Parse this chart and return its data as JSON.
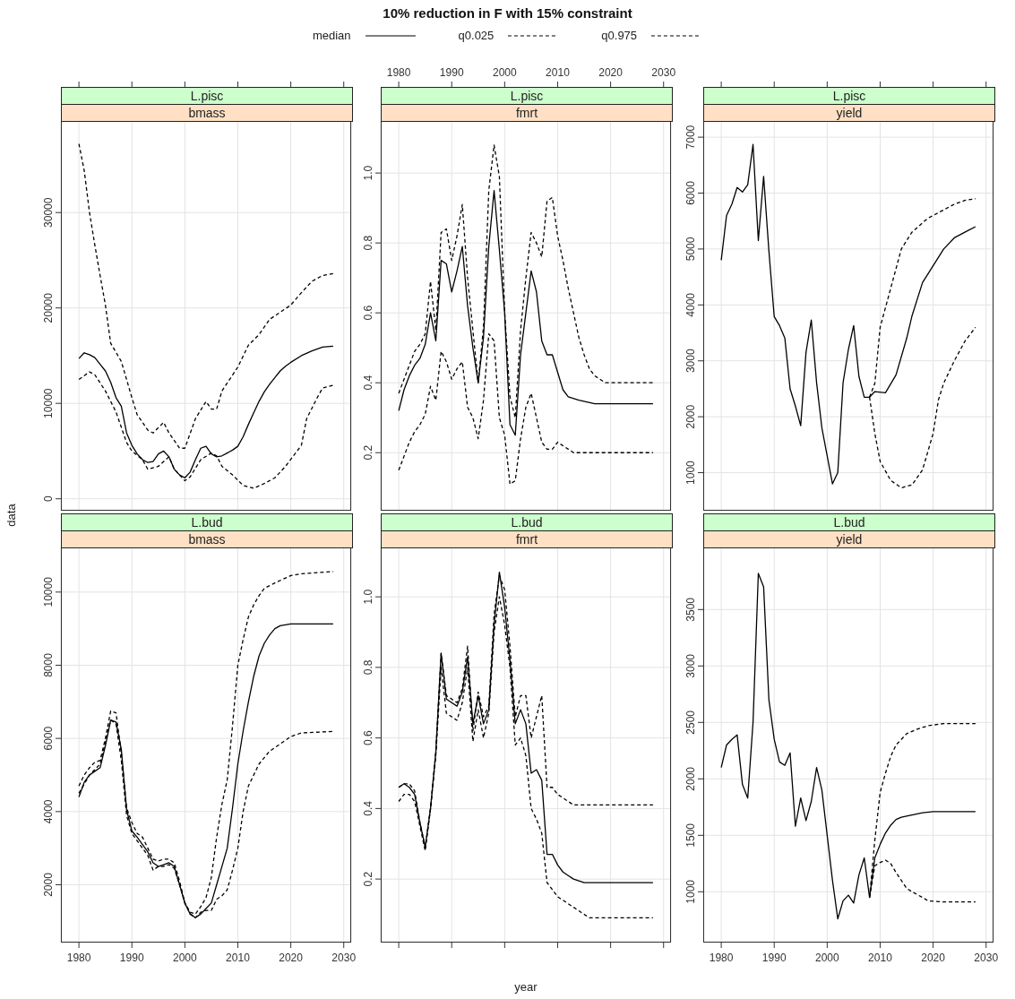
{
  "chart_data": [
    {
      "type": "other",
      "title": "10% reduction in F with 15% constraint"
    },
    {
      "type": "line",
      "title": "L.pisc",
      "subtitle": "bmass",
      "xlim": [
        1976.6,
        2031.4
      ],
      "xticks": [
        1980,
        1990,
        2000,
        2010,
        2020,
        2030
      ],
      "ylim": [
        -1250,
        39600
      ],
      "yticks": [
        0,
        10000,
        20000,
        30000
      ],
      "grid": true,
      "tick_labels": "y",
      "marker": "none",
      "legend": "top",
      "series": [
        {
          "name": "median",
          "color": "#000000",
          "line_style": "solid",
          "x": [
            1980,
            1981,
            1982,
            1983,
            1984,
            1985,
            1986,
            1987,
            1988,
            1989,
            1990,
            1991,
            1992,
            1993,
            1994,
            1995,
            1996,
            1997,
            1998,
            1999,
            2000,
            2001,
            2002,
            2003,
            2004,
            2005,
            2006,
            2007,
            2008,
            2009,
            2010,
            2011,
            2012,
            2013,
            2014,
            2015,
            2016,
            2017,
            2018,
            2019,
            2020,
            2022,
            2024,
            2026,
            2028
          ],
          "values": [
            14700,
            15300,
            15100,
            14800,
            14100,
            13400,
            12200,
            10600,
            9700,
            6900,
            5600,
            4700,
            4100,
            3800,
            3900,
            4700,
            5000,
            4400,
            3100,
            2500,
            2200,
            2800,
            4100,
            5300,
            5500,
            4700,
            4400,
            4500,
            4800,
            5100,
            5500,
            6500,
            7800,
            9000,
            10200,
            11200,
            12000,
            12700,
            13400,
            13900,
            14300,
            15000,
            15500,
            15900,
            16000
          ]
        },
        {
          "name": "q0.025",
          "color": "#000000",
          "line_style": "dashed",
          "x": [
            1980,
            1982,
            1983,
            1985,
            1987,
            1989,
            1990,
            1992,
            1993,
            1995,
            1997,
            1998,
            2000,
            2001,
            2003,
            2005,
            2006,
            2007,
            2009,
            2011,
            2013,
            2015,
            2017,
            2019,
            2022,
            2023,
            2025,
            2026,
            2028
          ],
          "values": [
            12500,
            13300,
            13000,
            11300,
            9100,
            5900,
            5000,
            4100,
            3100,
            3400,
            4400,
            3100,
            1900,
            2300,
            4100,
            4800,
            4500,
            3400,
            2500,
            1400,
            1100,
            1600,
            2200,
            3400,
            5600,
            8400,
            10600,
            11600,
            11900
          ]
        },
        {
          "name": "q0.975",
          "color": "#000000",
          "line_style": "dashed",
          "x": [
            1980,
            1981,
            1982,
            1983,
            1984,
            1985,
            1986,
            1988,
            1990,
            1991,
            1993,
            1994,
            1996,
            1997,
            1999,
            2000,
            2002,
            2004,
            2005,
            2006,
            2007,
            2010,
            2012,
            2014,
            2016,
            2020,
            2022,
            2024,
            2026,
            2028
          ],
          "values": [
            37200,
            34400,
            30000,
            26600,
            23400,
            20300,
            16300,
            14400,
            10600,
            8800,
            7200,
            6900,
            8000,
            6900,
            5300,
            5300,
            8400,
            10200,
            9400,
            9400,
            11300,
            13800,
            16100,
            17200,
            18800,
            20300,
            21600,
            22800,
            23400,
            23600
          ]
        }
      ]
    },
    {
      "type": "line",
      "title": "L.pisc",
      "subtitle": "fmrt",
      "xlim": [
        1976.6,
        2031.4
      ],
      "xticks": [
        1980,
        1990,
        2000,
        2010,
        2020,
        2030
      ],
      "ylim": [
        0.034,
        1.149
      ],
      "yticks": [
        0.2,
        0.4,
        0.6,
        0.8,
        {
          "value": 1,
          "label": "1.0"
        }
      ],
      "grid": true,
      "marker": "none",
      "series": [
        {
          "color": "#000000",
          "line_style": "solid",
          "x": [
            1980,
            1981,
            1982,
            1983,
            1984,
            1985,
            1986,
            1987,
            1988,
            1989,
            1990,
            1991,
            1992,
            1993,
            1994,
            1995,
            1996,
            1997,
            1998,
            1999,
            2000,
            2001,
            2002,
            2003,
            2004,
            2005,
            2006,
            2007,
            2008,
            2009,
            2010,
            2011,
            2012,
            2014,
            2017,
            2028
          ],
          "values": [
            0.32,
            0.38,
            0.42,
            0.45,
            0.47,
            0.51,
            0.6,
            0.52,
            0.75,
            0.74,
            0.66,
            0.72,
            0.79,
            0.62,
            0.5,
            0.4,
            0.53,
            0.79,
            0.95,
            0.78,
            0.6,
            0.28,
            0.25,
            0.48,
            0.6,
            0.72,
            0.66,
            0.52,
            0.48,
            0.48,
            0.43,
            0.38,
            0.36,
            0.35,
            0.34,
            0.34
          ]
        },
        {
          "color": "#000000",
          "line_style": "dashed",
          "x": [
            1980,
            1981,
            1982,
            1983,
            1984,
            1985,
            1986,
            1987,
            1988,
            1989,
            1990,
            1991,
            1992,
            1993,
            1994,
            1995,
            1996,
            1997,
            1998,
            1999,
            2000,
            2001,
            2002,
            2003,
            2004,
            2005,
            2006,
            2007,
            2008,
            2009,
            2010,
            2011,
            2013,
            2016,
            2028
          ],
          "values": [
            0.15,
            0.19,
            0.23,
            0.26,
            0.28,
            0.31,
            0.39,
            0.35,
            0.49,
            0.46,
            0.41,
            0.44,
            0.46,
            0.33,
            0.3,
            0.24,
            0.35,
            0.54,
            0.52,
            0.3,
            0.25,
            0.11,
            0.12,
            0.24,
            0.33,
            0.37,
            0.3,
            0.23,
            0.21,
            0.21,
            0.23,
            0.22,
            0.2,
            0.2,
            0.2
          ]
        },
        {
          "color": "#000000",
          "line_style": "dashed",
          "x": [
            1980,
            1981,
            1982,
            1983,
            1984,
            1985,
            1986,
            1987,
            1988,
            1989,
            1990,
            1991,
            1992,
            1993,
            1994,
            1995,
            1996,
            1997,
            1998,
            1999,
            2000,
            2001,
            2002,
            2003,
            2004,
            2005,
            2006,
            2007,
            2008,
            2009,
            2010,
            2011,
            2012,
            2013,
            2014,
            2015,
            2016,
            2017,
            2019,
            2020,
            2028
          ],
          "values": [
            0.37,
            0.41,
            0.45,
            0.49,
            0.51,
            0.54,
            0.69,
            0.55,
            0.83,
            0.84,
            0.75,
            0.82,
            0.91,
            0.7,
            0.55,
            0.4,
            0.56,
            0.95,
            1.08,
            0.99,
            0.6,
            0.36,
            0.3,
            0.55,
            0.7,
            0.83,
            0.8,
            0.76,
            0.92,
            0.93,
            0.82,
            0.75,
            0.67,
            0.6,
            0.53,
            0.48,
            0.44,
            0.42,
            0.4,
            0.4,
            0.4
          ]
        }
      ]
    },
    {
      "type": "line",
      "title": "L.pisc",
      "subtitle": "yield",
      "xlim": [
        1976.6,
        2031.4
      ],
      "xticks": [
        1980,
        1990,
        2000,
        2010,
        2020,
        2030
      ],
      "ylim": [
        320,
        7290
      ],
      "yticks": [
        1000,
        2000,
        3000,
        4000,
        5000,
        6000,
        7000
      ],
      "grid": true,
      "tick_labels": "y",
      "marker": "none",
      "series": [
        {
          "color": "#000000",
          "line_style": "solid",
          "x": [
            1980,
            1981,
            1982,
            1983,
            1984,
            1985,
            1986,
            1987,
            1988,
            1989,
            1990,
            1991,
            1992,
            1993,
            1994,
            1995,
            1996,
            1997,
            1998,
            1999,
            2000,
            2001,
            2002,
            2003,
            2004,
            2005,
            2006,
            2007,
            2008,
            2009,
            2011,
            2013,
            2015,
            2016,
            2018,
            2020,
            2022,
            2024,
            2026,
            2028
          ],
          "values": [
            4800,
            5600,
            5800,
            6100,
            6020,
            6150,
            6870,
            5150,
            6300,
            4960,
            3790,
            3630,
            3410,
            2500,
            2190,
            1840,
            3150,
            3730,
            2610,
            1800,
            1300,
            800,
            1000,
            2610,
            3200,
            3630,
            2720,
            2350,
            2350,
            2450,
            2430,
            2750,
            3400,
            3800,
            4400,
            4700,
            5000,
            5200,
            5300,
            5400
          ]
        },
        {
          "color": "#000000",
          "line_style": "dashed",
          "x": [
            2008,
            2009,
            2010,
            2012,
            2014,
            2016,
            2018,
            2020,
            2021,
            2022,
            2024,
            2026,
            2028
          ],
          "values": [
            2350,
            1700,
            1200,
            860,
            730,
            780,
            1050,
            1700,
            2300,
            2600,
            3000,
            3350,
            3600
          ]
        },
        {
          "color": "#000000",
          "line_style": "dashed",
          "x": [
            2008,
            2009,
            2010,
            2012,
            2014,
            2016,
            2019,
            2021,
            2024,
            2026,
            2028
          ],
          "values": [
            2350,
            2600,
            3600,
            4300,
            5000,
            5300,
            5550,
            5650,
            5800,
            5870,
            5900
          ]
        }
      ]
    },
    {
      "type": "line",
      "title": "L.bud",
      "subtitle": "bmass",
      "ylabel": "data",
      "xlim": [
        1976.6,
        2031.4
      ],
      "xticks": [
        1980,
        1990,
        2000,
        2010,
        2020,
        2030
      ],
      "ylim": [
        420,
        11220
      ],
      "yticks": [
        2000,
        4000,
        6000,
        8000,
        10000
      ],
      "grid": true,
      "marker": "none",
      "series": [
        {
          "color": "#000000",
          "line_style": "solid",
          "x": [
            1980,
            1981,
            1982,
            1983,
            1984,
            1985,
            1986,
            1987,
            1988,
            1989,
            1990,
            1991,
            1992,
            1993,
            1994,
            1995,
            1996,
            1997,
            1998,
            1999,
            2000,
            2001,
            2002,
            2003,
            2004,
            2005,
            2006,
            2007,
            2008,
            2009,
            2010,
            2011,
            2012,
            2013,
            2014,
            2015,
            2016,
            2017,
            2018,
            2020,
            2028
          ],
          "values": [
            4400,
            4800,
            5000,
            5100,
            5200,
            5800,
            6500,
            6450,
            5700,
            4050,
            3470,
            3300,
            3100,
            2900,
            2600,
            2500,
            2550,
            2600,
            2500,
            2000,
            1500,
            1200,
            1100,
            1200,
            1350,
            1500,
            2000,
            2500,
            3000,
            4100,
            5300,
            6200,
            7000,
            7700,
            8250,
            8600,
            8830,
            9000,
            9080,
            9130,
            9130
          ]
        },
        {
          "color": "#000000",
          "line_style": "dashed",
          "x": [
            1980,
            1982,
            1984,
            1986,
            1987,
            1988,
            1989,
            1990,
            1992,
            1993,
            1994,
            1995,
            1996,
            1997,
            1998,
            1999,
            2000,
            2001,
            2002,
            2003,
            2004,
            2005,
            2006,
            2007,
            2008,
            2009,
            2010,
            2011,
            2012,
            2013,
            2014,
            2016,
            2018,
            2020,
            2022,
            2028
          ],
          "values": [
            4500,
            5000,
            5300,
            6500,
            6400,
            5400,
            3900,
            3400,
            3000,
            2800,
            2400,
            2500,
            2500,
            2550,
            2450,
            2000,
            1500,
            1200,
            1100,
            1250,
            1300,
            1300,
            1600,
            1700,
            1860,
            2400,
            3000,
            4000,
            4700,
            5000,
            5300,
            5650,
            5850,
            6050,
            6150,
            6190
          ]
        },
        {
          "color": "#000000",
          "line_style": "dashed",
          "x": [
            1980,
            1981,
            1982,
            1983,
            1984,
            1985,
            1986,
            1987,
            1988,
            1989,
            1990,
            1991,
            1992,
            1993,
            1994,
            1995,
            1996,
            1997,
            1998,
            1999,
            2000,
            2001,
            2002,
            2003,
            2004,
            2005,
            2006,
            2007,
            2008,
            2009,
            2010,
            2011,
            2012,
            2013,
            2014,
            2015,
            2017,
            2020,
            2022,
            2028
          ],
          "values": [
            4700,
            5000,
            5200,
            5350,
            5400,
            6000,
            6750,
            6700,
            5600,
            4100,
            3700,
            3400,
            3300,
            3000,
            2700,
            2650,
            2700,
            2700,
            2600,
            2100,
            1500,
            1250,
            1200,
            1400,
            1650,
            2200,
            3300,
            4200,
            4870,
            6350,
            8000,
            8700,
            9320,
            9650,
            9900,
            10100,
            10250,
            10450,
            10500,
            10560
          ]
        }
      ]
    },
    {
      "type": "line",
      "title": "L.bud",
      "subtitle": "fmrt",
      "xlabel": "year",
      "xlim": [
        1976.6,
        2031.4
      ],
      "xticks": [
        1980,
        1990,
        2000,
        2010,
        2020,
        2030
      ],
      "ylim": [
        0.02,
        1.14
      ],
      "yticks": [
        0.2,
        0.4,
        0.6,
        0.8,
        {
          "value": 1,
          "label": "1.0"
        }
      ],
      "grid": true,
      "tick_labels": "y",
      "marker": "none",
      "series": [
        {
          "color": "#000000",
          "line_style": "solid",
          "x": [
            1980,
            1981,
            1982,
            1983,
            1984,
            1985,
            1986,
            1987,
            1988,
            1989,
            1990,
            1991,
            1992,
            1993,
            1994,
            1995,
            1996,
            1997,
            1998,
            1999,
            2000,
            2001,
            2002,
            2003,
            2004,
            2005,
            2006,
            2007,
            2008,
            2009,
            2010,
            2011,
            2012,
            2013,
            2015,
            2028
          ],
          "values": [
            0.46,
            0.47,
            0.46,
            0.44,
            0.36,
            0.29,
            0.4,
            0.56,
            0.84,
            0.71,
            0.7,
            0.69,
            0.73,
            0.83,
            0.64,
            0.72,
            0.64,
            0.68,
            0.92,
            1.07,
            0.97,
            0.82,
            0.64,
            0.68,
            0.64,
            0.5,
            0.51,
            0.48,
            0.27,
            0.27,
            0.24,
            0.22,
            0.21,
            0.2,
            0.19,
            0.19
          ]
        },
        {
          "color": "#000000",
          "line_style": "dashed",
          "x": [
            1980,
            1981,
            1982,
            1983,
            1984,
            1985,
            1986,
            1987,
            1988,
            1989,
            1990,
            1991,
            1992,
            1993,
            1994,
            1995,
            1996,
            1997,
            1998,
            1999,
            2000,
            2001,
            2002,
            2003,
            2004,
            2005,
            2006,
            2007,
            2008,
            2009,
            2010,
            2011,
            2012,
            2013,
            2014,
            2016,
            2028
          ],
          "values": [
            0.42,
            0.44,
            0.44,
            0.42,
            0.35,
            0.28,
            0.4,
            0.55,
            0.8,
            0.67,
            0.66,
            0.65,
            0.7,
            0.8,
            0.59,
            0.68,
            0.6,
            0.67,
            0.9,
            1.0,
            0.92,
            0.8,
            0.58,
            0.6,
            0.55,
            0.4,
            0.37,
            0.33,
            0.19,
            0.17,
            0.15,
            0.14,
            0.13,
            0.12,
            0.11,
            0.09,
            0.09
          ]
        },
        {
          "color": "#000000",
          "line_style": "dashed",
          "x": [
            1980,
            1981,
            1982,
            1983,
            1984,
            1985,
            1986,
            1987,
            1988,
            1989,
            1990,
            1991,
            1992,
            1993,
            1994,
            1995,
            1996,
            1997,
            1998,
            1999,
            2000,
            2001,
            2002,
            2003,
            2004,
            2005,
            2006,
            2007,
            2008,
            2009,
            2010,
            2011,
            2012,
            2013,
            2028
          ],
          "values": [
            0.46,
            0.47,
            0.47,
            0.45,
            0.36,
            0.29,
            0.4,
            0.56,
            0.84,
            0.72,
            0.71,
            0.7,
            0.74,
            0.86,
            0.62,
            0.73,
            0.66,
            0.69,
            0.95,
            1.06,
            1.02,
            0.86,
            0.66,
            0.72,
            0.72,
            0.6,
            0.66,
            0.72,
            0.46,
            0.46,
            0.44,
            0.43,
            0.42,
            0.41,
            0.41
          ]
        }
      ]
    },
    {
      "type": "line",
      "title": "L.bud",
      "subtitle": "yield",
      "xlim": [
        1976.6,
        2031.4
      ],
      "xticks": [
        1980,
        1990,
        2000,
        2010,
        2020,
        2030
      ],
      "ylim": [
        550,
        4050
      ],
      "yticks": [
        1000,
        1500,
        2000,
        2500,
        3000,
        3500
      ],
      "grid": true,
      "marker": "none",
      "series": [
        {
          "color": "#000000",
          "line_style": "solid",
          "x": [
            1980,
            1981,
            1982,
            1983,
            1984,
            1985,
            1986,
            1987,
            1988,
            1989,
            1990,
            1991,
            1992,
            1993,
            1994,
            1995,
            1996,
            1997,
            1998,
            1999,
            2000,
            2001,
            2002,
            2003,
            2004,
            2005,
            2006,
            2007,
            2008,
            2009,
            2010,
            2011,
            2012,
            2013,
            2014,
            2016,
            2018,
            2020,
            2028
          ],
          "values": [
            2100,
            2300,
            2350,
            2390,
            1950,
            1830,
            2500,
            3820,
            3700,
            2700,
            2350,
            2150,
            2120,
            2230,
            1580,
            1830,
            1630,
            1800,
            2100,
            1900,
            1500,
            1100,
            760,
            920,
            970,
            900,
            1150,
            1300,
            950,
            1300,
            1420,
            1520,
            1590,
            1640,
            1660,
            1680,
            1700,
            1710,
            1710
          ]
        },
        {
          "color": "#000000",
          "line_style": "dashed",
          "x": [
            2008,
            2009,
            2010,
            2011,
            2012,
            2013,
            2015,
            2016,
            2018,
            2019,
            2022,
            2028
          ],
          "values": [
            950,
            1230,
            1260,
            1280,
            1250,
            1170,
            1030,
            1000,
            950,
            920,
            910,
            910
          ]
        },
        {
          "color": "#000000",
          "line_style": "dashed",
          "x": [
            2008,
            2009,
            2010,
            2011,
            2012,
            2013,
            2015,
            2017,
            2019,
            2022,
            2028
          ],
          "values": [
            950,
            1460,
            1880,
            2050,
            2200,
            2300,
            2400,
            2440,
            2470,
            2490,
            2490
          ]
        }
      ]
    }
  ]
}
